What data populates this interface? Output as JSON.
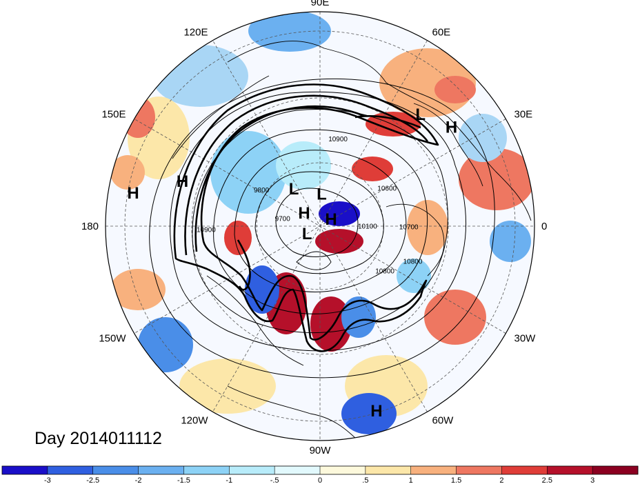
{
  "title": "Day 2014011112",
  "colors": {
    "background": "#ffffff",
    "ocean_base": "#f3f7ff",
    "land_line": "#000000"
  },
  "longitude_labels": [
    {
      "text": "90E",
      "lon": 90
    },
    {
      "text": "60E",
      "lon": 60
    },
    {
      "text": "30E",
      "lon": 30
    },
    {
      "text": "0",
      "lon": 0
    },
    {
      "text": "30W",
      "lon": -30
    },
    {
      "text": "60W",
      "lon": -60
    },
    {
      "text": "90W",
      "lon": -90
    },
    {
      "text": "120W",
      "lon": -120
    },
    {
      "text": "150W",
      "lon": -150
    },
    {
      "text": "180",
      "lon": 180
    },
    {
      "text": "150E",
      "lon": 150
    },
    {
      "text": "120E",
      "lon": 120
    }
  ],
  "pressure_centers": [
    {
      "type": "L",
      "lon": 48,
      "lat": 20
    },
    {
      "type": "H",
      "lon": 37,
      "lat": 15
    },
    {
      "type": "H",
      "lon": 162,
      "lat": 22
    },
    {
      "type": "H",
      "lon": 170,
      "lat": 7
    },
    {
      "type": "L",
      "lon": 125,
      "lat": 66
    },
    {
      "type": "L",
      "lon": 87,
      "lat": 73
    },
    {
      "type": "H",
      "lon": 140,
      "lat": 79
    },
    {
      "type": "H",
      "lon": 32,
      "lat": 83
    },
    {
      "type": "L",
      "lon": -150,
      "lat": 82
    },
    {
      "type": "H",
      "lon": -73,
      "lat": 6
    }
  ],
  "contour_labels": [
    {
      "text": "10900",
      "lon": 78,
      "lat": 46
    },
    {
      "text": "9800",
      "lon": 150,
      "lat": 55
    },
    {
      "text": "9700",
      "lon": 172,
      "lat": 70
    },
    {
      "text": "10900",
      "lon": -177,
      "lat": 34
    },
    {
      "text": "10100",
      "lon": -3,
      "lat": 65
    },
    {
      "text": "10600",
      "lon": 28,
      "lat": 51
    },
    {
      "text": "10700",
      "lon": -2,
      "lat": 45
    },
    {
      "text": "10800",
      "lon": -22,
      "lat": 40
    },
    {
      "text": "10800",
      "lon": -36,
      "lat": 49
    }
  ],
  "colorbar": {
    "tick_labels": [
      "-3",
      "-2.5",
      "-2",
      "-1.5",
      "-1",
      "-.5",
      "0",
      ".5",
      "1",
      "1.5",
      "2",
      "2.5",
      "3"
    ],
    "colors": [
      "#1a0fc8",
      "#2f5fe0",
      "#4a8ee8",
      "#6bb0f0",
      "#8dd2f6",
      "#b8ecfa",
      "#e2f9fd",
      "#fdf9dc",
      "#fce7a9",
      "#f8b17e",
      "#ee7761",
      "#df3d38",
      "#b5102a",
      "#8b0020"
    ]
  }
}
